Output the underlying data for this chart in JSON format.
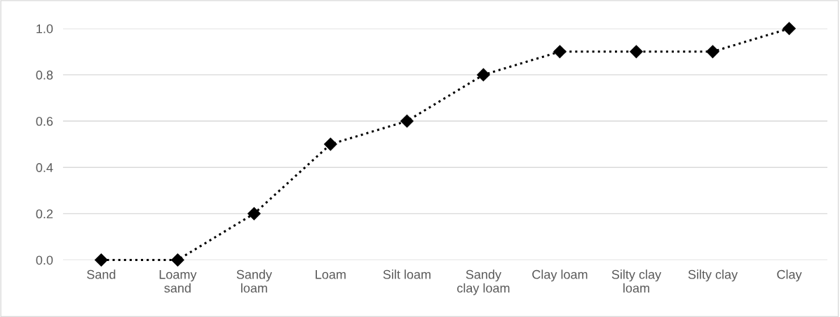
{
  "chart_data": {
    "type": "line",
    "categories": [
      "Sand",
      "Loamy\nsand",
      "Sandy\nloam",
      "Loam",
      "Silt loam",
      "Sandy\nclay loam",
      "Clay loam",
      "Silty clay\nloam",
      "Silty clay",
      "Clay"
    ],
    "series": [
      {
        "color": "#000000",
        "values": [
          0.0,
          0.0,
          0.2,
          0.5,
          0.6,
          0.8,
          0.9,
          0.9,
          0.9,
          1.0
        ]
      }
    ],
    "ylim": [
      0,
      1.0
    ],
    "yticks": [
      {
        "value": 0,
        "label": "0.0"
      },
      {
        "value": 0.2,
        "label": "0.2"
      },
      {
        "value": 0.4,
        "label": "0.4"
      },
      {
        "value": 0.6,
        "label": "0.6"
      },
      {
        "value": 0.8,
        "label": "0.8"
      },
      {
        "value": 1.0,
        "label": "1.0"
      }
    ],
    "grid": "y",
    "legend": false,
    "marker": "diamond",
    "line_style": "dotted"
  }
}
